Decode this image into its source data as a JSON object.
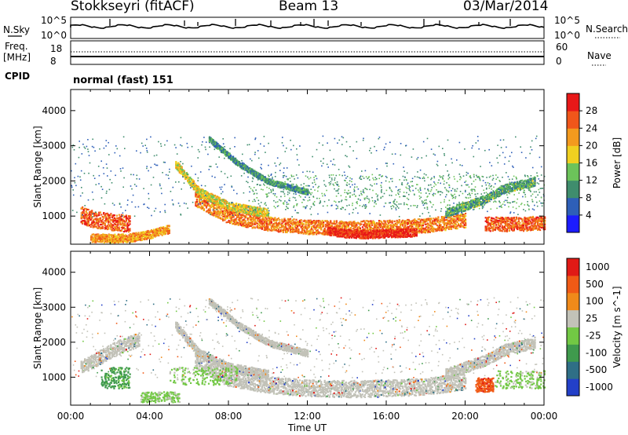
{
  "header": {
    "station": "Stokkseyri (fitACF)",
    "beam": "Beam 13",
    "date": "03/Mar/2014"
  },
  "status_panel": {
    "nsky_label": "N.Sky",
    "nsky_ticks": [
      "10^5",
      "10^0"
    ],
    "nsearch_label": "N.Search",
    "nsearch_ticks": [
      "10^5",
      "10^0"
    ],
    "freq_label": "Freq.",
    "freq_unit": "[MHz]",
    "freq_ticks": [
      "18",
      "8"
    ],
    "nave_label": "Nave",
    "nave_ticks": [
      "60",
      "0"
    ],
    "cpid_label": "CPID",
    "cpid_value": "normal (fast) 151"
  },
  "chart_data": [
    {
      "type": "heatmap",
      "quantity": "Power",
      "ylabel": "Slant Range [km]",
      "ylim": [
        200,
        4600
      ],
      "yticks": [
        "1000",
        "2000",
        "3000",
        "4000"
      ],
      "colorbar_label": "Power [dB]",
      "colorbar_ticks": [
        "4",
        "8",
        "12",
        "16",
        "20",
        "24",
        "28"
      ],
      "colorbar_range": [
        0,
        32
      ],
      "colors": [
        "#1c1cff",
        "#2e5fb8",
        "#3f8d6d",
        "#6cc35a",
        "#f0d020",
        "#f39a1e",
        "#f0561a",
        "#e81818"
      ],
      "features": [
        {
          "kind": "band",
          "x": [
            0.5,
            1.0,
            1.5,
            2.0,
            3.0
          ],
          "y": [
            1050,
            950,
            900,
            850,
            800
          ],
          "width": 300,
          "level": 26
        },
        {
          "kind": "band",
          "x": [
            6.3,
            8.0,
            10.0,
            12.0,
            14.0,
            16.0,
            18.0,
            20.0
          ],
          "y": [
            1500,
            1000,
            800,
            700,
            680,
            700,
            750,
            900
          ],
          "width": 250,
          "level": 24
        },
        {
          "kind": "band",
          "x": [
            13.0,
            14.0,
            15.0,
            16.0,
            17.5
          ],
          "y": [
            600,
            520,
            500,
            520,
            560
          ],
          "width": 150,
          "level": 29
        },
        {
          "kind": "band",
          "x": [
            21.0,
            22.0,
            23.0,
            24.0
          ],
          "y": [
            800,
            780,
            800,
            820
          ],
          "width": 250,
          "level": 26
        },
        {
          "kind": "band",
          "x": [
            5.3,
            6.5,
            8.0,
            10.0
          ],
          "y": [
            2500,
            1700,
            1300,
            1100
          ],
          "width": 150,
          "level": 18
        },
        {
          "kind": "band",
          "x": [
            7.0,
            8.5,
            10.0,
            12.0
          ],
          "y": [
            3200,
            2500,
            2000,
            1700
          ],
          "width": 100,
          "level": 10
        },
        {
          "kind": "band",
          "x": [
            19.0,
            20.0,
            21.0,
            22.0,
            23.5
          ],
          "y": [
            1100,
            1300,
            1500,
            1800,
            2000
          ],
          "width": 150,
          "level": 12
        },
        {
          "kind": "band",
          "x": [
            1.0,
            2.0,
            3.0,
            4.0,
            5.0
          ],
          "y": [
            400,
            380,
            400,
            500,
            650
          ],
          "width": 150,
          "level": 22
        },
        {
          "kind": "scatter",
          "x0": 0.0,
          "x1": 24.0,
          "y0": 1000,
          "y1": 3300,
          "level": 8
        },
        {
          "kind": "scatter",
          "x0": 9.0,
          "x1": 24.0,
          "y0": 1200,
          "y1": 2200,
          "level": 12
        }
      ]
    },
    {
      "type": "heatmap",
      "quantity": "Velocity",
      "xlabel": "Time UT",
      "ylabel": "Slant Range [km]",
      "xlim": [
        0,
        24
      ],
      "xticks": [
        "00:00",
        "04:00",
        "08:00",
        "12:00",
        "16:00",
        "20:00",
        "00:00"
      ],
      "ylim": [
        200,
        4600
      ],
      "yticks": [
        "1000",
        "2000",
        "3000",
        "4000"
      ],
      "colorbar_label": "Velocity [m s^-1]",
      "colorbar_ticks": [
        "1000",
        "500",
        "100",
        "25",
        "-25",
        "-100",
        "-500",
        "-1000"
      ],
      "colors": [
        "#2340c8",
        "#2f6f86",
        "#3f9a4d",
        "#72c844",
        "#c2c2b8",
        "#f08a1a",
        "#f05a16",
        "#e01a16"
      ],
      "features": [
        {
          "kind": "band",
          "x": [
            6.3,
            8.0,
            10.0,
            12.0,
            14.0,
            16.0,
            18.0,
            20.0
          ],
          "y": [
            1500,
            1000,
            800,
            700,
            680,
            700,
            750,
            900
          ],
          "width": 300,
          "level": 4
        },
        {
          "kind": "band",
          "x": [
            5.3,
            6.5,
            8.0,
            10.0
          ],
          "y": [
            2500,
            1700,
            1300,
            1100
          ],
          "width": 150,
          "level": 4
        },
        {
          "kind": "band",
          "x": [
            7.0,
            8.5,
            10.0,
            12.0
          ],
          "y": [
            3200,
            2500,
            2000,
            1700
          ],
          "width": 120,
          "level": 4
        },
        {
          "kind": "band",
          "x": [
            19.0,
            20.0,
            21.0,
            22.0,
            23.5
          ],
          "y": [
            1100,
            1300,
            1500,
            1800,
            2000
          ],
          "width": 200,
          "level": 4
        },
        {
          "kind": "band",
          "x": [
            0.5,
            1.5,
            2.5,
            3.5
          ],
          "y": [
            1300,
            1600,
            1900,
            2100
          ],
          "width": 250,
          "level": 4
        },
        {
          "kind": "blob",
          "x": [
            1.5,
            3.0
          ],
          "y": [
            700,
            1300
          ],
          "level": 2
        },
        {
          "kind": "blob",
          "x": [
            3.5,
            5.5
          ],
          "y": [
            300,
            600
          ],
          "level": 3
        },
        {
          "kind": "blob",
          "x": [
            5.0,
            8.5
          ],
          "y": [
            800,
            1300
          ],
          "level": 3
        },
        {
          "kind": "blob",
          "x": [
            20.5,
            21.4
          ],
          "y": [
            600,
            1000
          ],
          "level": 6
        },
        {
          "kind": "blob",
          "x": [
            21.5,
            24.0
          ],
          "y": [
            700,
            1200
          ],
          "level": 3
        },
        {
          "kind": "scatter",
          "x0": 0.0,
          "x1": 24.0,
          "y0": 1000,
          "y1": 3300,
          "level": 4
        }
      ]
    }
  ]
}
